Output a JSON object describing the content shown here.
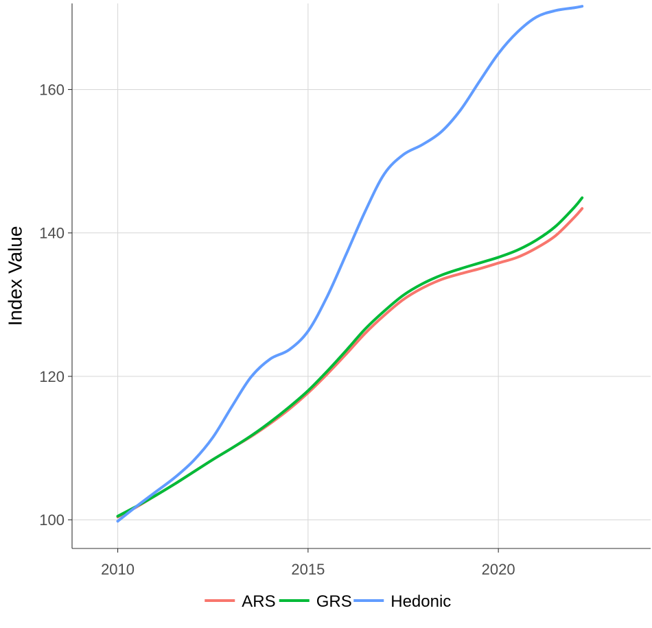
{
  "chart_data": {
    "type": "line",
    "title": "",
    "xlabel": "",
    "ylabel": "Index Value",
    "xlim": [
      2008.8,
      2024.0
    ],
    "ylim": [
      96,
      172
    ],
    "xticks": [
      2010,
      2015,
      2020
    ],
    "yticks": [
      100,
      120,
      140,
      160
    ],
    "grid": true,
    "legend_position": "bottom",
    "x": [
      2010.0,
      2010.5,
      2011.0,
      2011.5,
      2012.0,
      2012.5,
      2013.0,
      2013.5,
      2014.0,
      2014.5,
      2015.0,
      2015.5,
      2016.0,
      2016.5,
      2017.0,
      2017.5,
      2018.0,
      2018.5,
      2019.0,
      2019.5,
      2020.0,
      2020.5,
      2021.0,
      2021.5,
      2022.0,
      2022.2
    ],
    "series": [
      {
        "name": "ARS",
        "color": "#F8766D",
        "values": [
          100.4,
          101.8,
          103.4,
          105.0,
          106.7,
          108.4,
          110.0,
          111.6,
          113.4,
          115.4,
          117.7,
          120.3,
          123.1,
          126.0,
          128.5,
          130.7,
          132.3,
          133.5,
          134.3,
          135.0,
          135.8,
          136.6,
          137.9,
          139.6,
          142.2,
          143.4
        ]
      },
      {
        "name": "GRS",
        "color": "#00BA38",
        "values": [
          100.5,
          101.9,
          103.4,
          105.0,
          106.7,
          108.4,
          110.0,
          111.7,
          113.6,
          115.7,
          118.0,
          120.7,
          123.6,
          126.6,
          129.1,
          131.3,
          132.9,
          134.1,
          135.0,
          135.8,
          136.6,
          137.6,
          139.0,
          140.9,
          143.6,
          144.9
        ]
      },
      {
        "name": "Hedonic",
        "color": "#619CFF",
        "values": [
          99.8,
          101.9,
          103.9,
          105.9,
          108.3,
          111.5,
          115.8,
          119.9,
          122.4,
          123.7,
          126.3,
          131.1,
          137.0,
          143.0,
          148.2,
          150.9,
          152.3,
          154.1,
          157.1,
          161.1,
          165.0,
          168.0,
          170.1,
          171.0,
          171.4,
          171.6
        ]
      }
    ]
  }
}
